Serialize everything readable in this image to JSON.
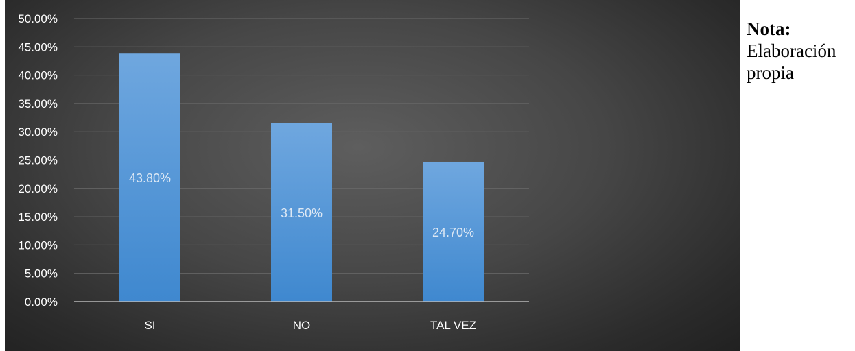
{
  "chart_data": {
    "type": "bar",
    "categories": [
      "SI",
      "NO",
      "TAL VEZ"
    ],
    "values": [
      43.8,
      31.5,
      24.7
    ],
    "data_labels": [
      "43.80%",
      "31.50%",
      "24.70%"
    ],
    "ylim": [
      0,
      50
    ],
    "yticks": [
      0,
      5,
      10,
      15,
      20,
      25,
      30,
      35,
      40,
      45,
      50
    ],
    "ytick_labels": [
      "0.00%",
      "5.00%",
      "10.00%",
      "15.00%",
      "20.00%",
      "25.00%",
      "30.00%",
      "35.00%",
      "40.00%",
      "45.00%",
      "50.00%"
    ],
    "title": "",
    "xlabel": "",
    "ylabel": "",
    "grid": true,
    "legend": "none",
    "colors": {
      "bar_top": "#6fa7df",
      "bar_bottom": "#3f88cf",
      "gridline": "#6a6a6a",
      "axis_line": "#b8b8b8",
      "tick_text": "#ffffff",
      "data_label": "#dde8f4"
    }
  },
  "note": {
    "title": "Nota:",
    "text": "Elaboración propia"
  }
}
